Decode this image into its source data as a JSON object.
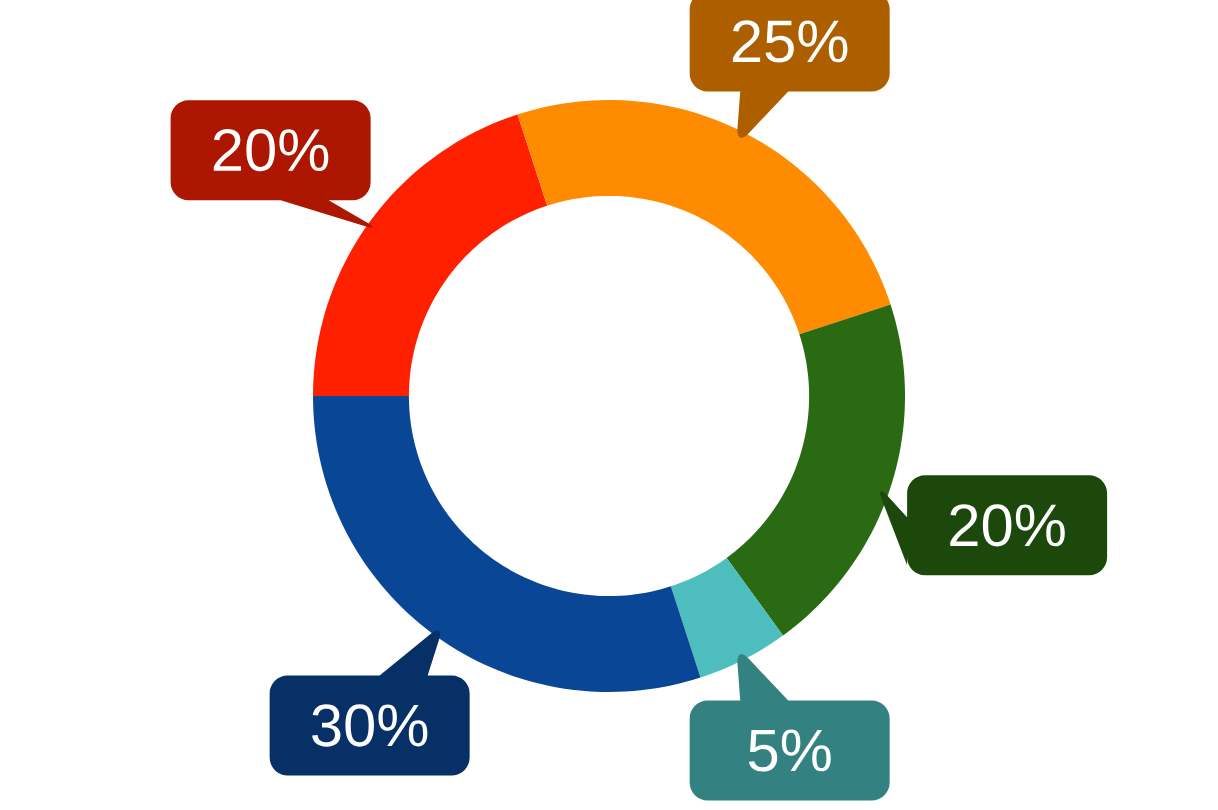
{
  "chart_data": {
    "type": "donut",
    "categories": [
      null,
      null,
      null,
      null,
      null
    ],
    "values": [
      20,
      25,
      20,
      5,
      30
    ],
    "colors": [
      "#ff2000",
      "#ff8c00",
      "#2a6a12",
      "#4dbdbd",
      "#0a4696"
    ],
    "value_labels": [
      "20%",
      "25%",
      "20%",
      "5%",
      "30%"
    ]
  }
}
